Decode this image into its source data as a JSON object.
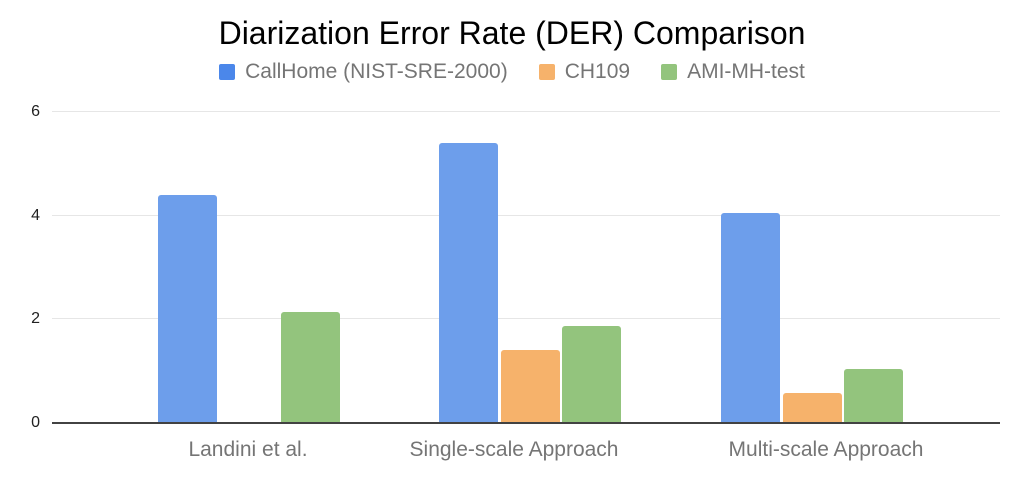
{
  "chart_data": {
    "type": "bar",
    "title": "Diarization Error Rate (DER) Comparison",
    "categories": [
      "Landini et al.",
      "Single-scale Approach",
      "Multi-scale Approach"
    ],
    "series": [
      {
        "name": "CallHome (NIST-SRE-2000)",
        "color": "#6d9eeb",
        "legend_color": "#4b87ea",
        "values": [
          4.4,
          5.4,
          4.05
        ]
      },
      {
        "name": "CH109",
        "color": "#f6b26b",
        "legend_color": "#f6b26b",
        "values": [
          0,
          1.4,
          0.58
        ]
      },
      {
        "name": "AMI-MH-test",
        "color": "#93c47d",
        "legend_color": "#93c47d",
        "values": [
          2.15,
          1.88,
          1.05
        ]
      }
    ],
    "xlabel": "",
    "ylabel": "",
    "ylim": [
      0,
      6
    ],
    "yticks": [
      0,
      2,
      4,
      6
    ],
    "grid": true,
    "legend_position": "top"
  },
  "palette": {
    "background": "#ffffff",
    "gridline": "#e6e6e6",
    "axis_line": "#424242",
    "title_text": "#000000",
    "legend_text": "#757575",
    "x_label_text": "#757575",
    "y_label_text": "#212121"
  }
}
